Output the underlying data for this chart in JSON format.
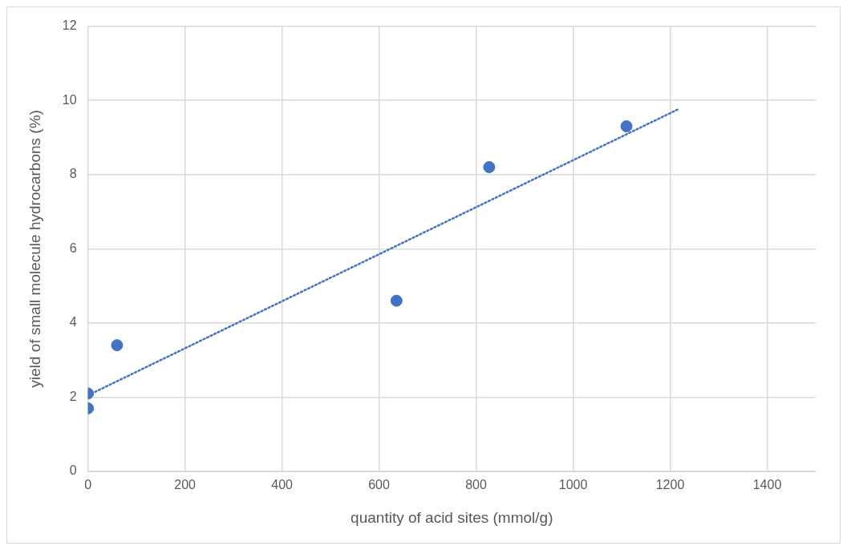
{
  "chart_data": {
    "type": "scatter",
    "xlabel": "quantity of acid sites (mmol/g)",
    "ylabel": "yield of small molecule hydrocarbons (%)",
    "xlim": [
      0,
      1500
    ],
    "xticks": [
      0,
      200,
      400,
      600,
      800,
      1000,
      1200,
      1400
    ],
    "ylim": [
      0,
      12
    ],
    "yticks": [
      0,
      2,
      4,
      6,
      8,
      10,
      12
    ],
    "grid": true,
    "legend": false,
    "marker": "circle",
    "series": [
      {
        "color": "#4472c4",
        "x": [
          0,
          0,
          60,
          636,
          827,
          1110
        ],
        "values": [
          2.1,
          1.7,
          3.4,
          4.6,
          8.2,
          9.3
        ]
      },
      {
        "type": "line",
        "color": "#4472c4",
        "line_style": "dotted",
        "marker": "none",
        "x": [
          0,
          1215
        ],
        "values": [
          2.05,
          9.75
        ]
      }
    ]
  }
}
